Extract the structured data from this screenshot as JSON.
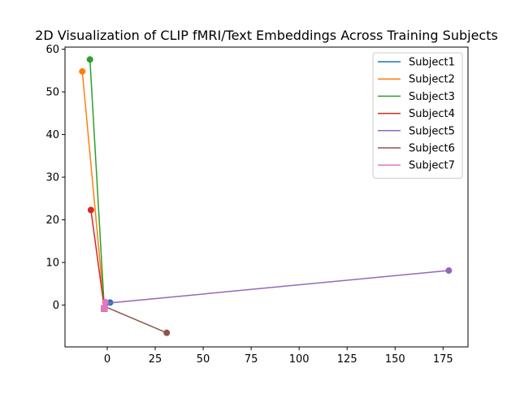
{
  "chart_data": {
    "type": "line",
    "title": "2D Visualization of CLIP fMRI/Text Embeddings Across Training Subjects",
    "xlabel": "",
    "ylabel": "",
    "xlim": [
      -22,
      188
    ],
    "ylim": [
      -9.8,
      60.5
    ],
    "xticks": [
      0,
      25,
      50,
      75,
      100,
      125,
      150,
      175
    ],
    "yticks": [
      0,
      10,
      20,
      30,
      40,
      50,
      60
    ],
    "grid": false,
    "legend_position": "top-right",
    "series": [
      {
        "name": "Subject1",
        "color": "#1f77b4",
        "points": [
          {
            "x": 1.5,
            "y": 0.6
          },
          {
            "x": -1.5,
            "y": -0.8
          }
        ],
        "marker_at": [
          0,
          1
        ]
      },
      {
        "name": "Subject2",
        "color": "#ff7f0e",
        "points": [
          {
            "x": -13,
            "y": 54.8
          },
          {
            "x": -1.5,
            "y": -0.8
          }
        ],
        "marker_at": [
          0,
          1
        ]
      },
      {
        "name": "Subject3",
        "color": "#2ca02c",
        "points": [
          {
            "x": -9,
            "y": 57.6
          },
          {
            "x": -1.5,
            "y": -0.8
          }
        ],
        "marker_at": [
          0,
          1
        ]
      },
      {
        "name": "Subject4",
        "color": "#d62728",
        "points": [
          {
            "x": -8.5,
            "y": 22.3
          },
          {
            "x": -1.5,
            "y": -0.8
          }
        ],
        "marker_at": [
          0,
          1
        ]
      },
      {
        "name": "Subject5",
        "color": "#9467bd",
        "points": [
          {
            "x": 178,
            "y": 8.1
          },
          {
            "x": 1.5,
            "y": 0.5
          },
          {
            "x": -1.5,
            "y": -0.8
          }
        ],
        "marker_at": [
          0,
          2
        ]
      },
      {
        "name": "Subject6",
        "color": "#8c564b",
        "points": [
          {
            "x": 31,
            "y": -6.5
          },
          {
            "x": -1.5,
            "y": -0.3
          },
          {
            "x": -1.5,
            "y": -0.8
          }
        ],
        "marker_at": [
          0,
          2
        ]
      },
      {
        "name": "Subject7",
        "color": "#e377c2",
        "points": [
          {
            "x": -1,
            "y": 0.7
          },
          {
            "x": -1.5,
            "y": -0.8
          }
        ],
        "marker_at": [
          0,
          1
        ]
      }
    ]
  }
}
